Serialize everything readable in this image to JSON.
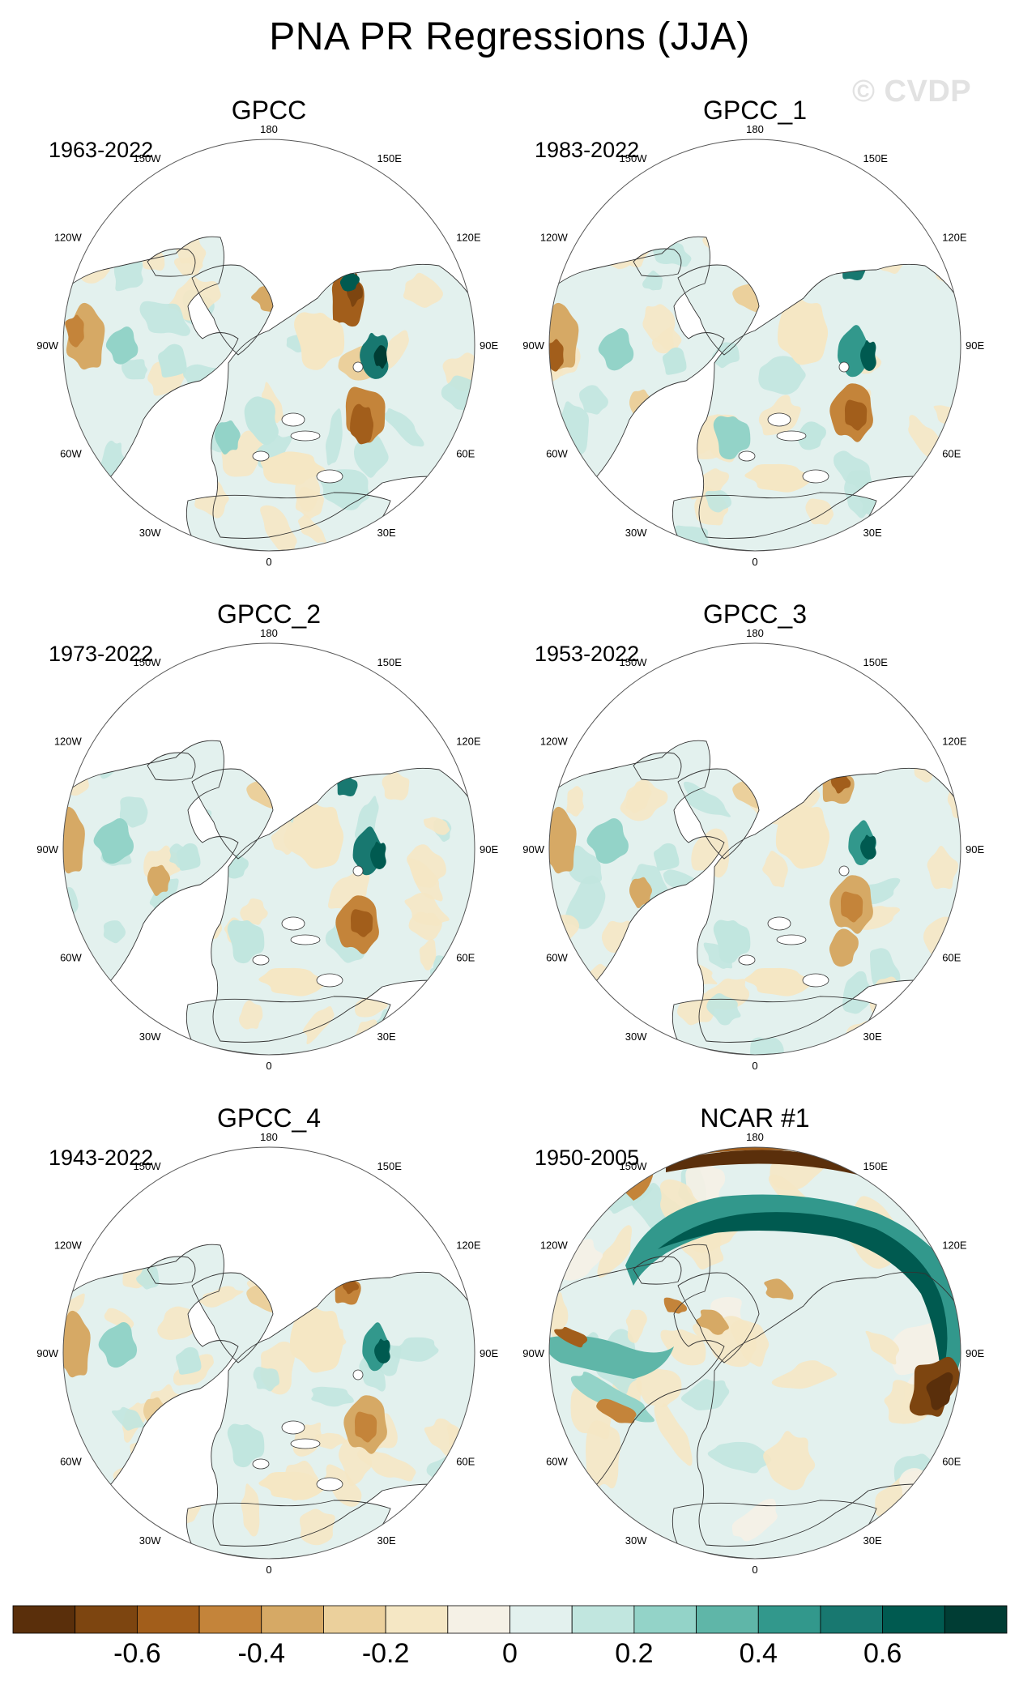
{
  "title": "PNA PR Regressions (JJA)",
  "watermark": "© CVDP",
  "panels": [
    {
      "name": "GPCC",
      "years": "1963-2022",
      "pattern": "obs1"
    },
    {
      "name": "GPCC_1",
      "years": "1983-2022",
      "pattern": "obs2"
    },
    {
      "name": "GPCC_2",
      "years": "1973-2022",
      "pattern": "obs3"
    },
    {
      "name": "GPCC_3",
      "years": "1953-2022",
      "pattern": "obs4"
    },
    {
      "name": "GPCC_4",
      "years": "1943-2022",
      "pattern": "obs5"
    },
    {
      "name": "NCAR #1",
      "years": "1950-2005",
      "pattern": "model"
    }
  ],
  "lon_labels": [
    "180",
    "150E",
    "120E",
    "90E",
    "60E",
    "30E",
    "0",
    "30W",
    "60W",
    "90W",
    "120W",
    "150W"
  ],
  "colorbar": {
    "colors": [
      "#5a2f0b",
      "#7d4510",
      "#a25e1b",
      "#c4843a",
      "#d6a965",
      "#ebd09c",
      "#f5e7c4",
      "#f5f1e6",
      "#e3f1ee",
      "#c1e6df",
      "#93d3c8",
      "#5fb6a8",
      "#32988c",
      "#187870",
      "#005a50",
      "#003d34"
    ],
    "tick_labels": [
      "-0.6",
      "-0.4",
      "-0.2",
      "0",
      "0.2",
      "0.4",
      "0.6"
    ],
    "tick_values": [
      -0.6,
      -0.4,
      -0.2,
      0,
      0.2,
      0.4,
      0.6
    ],
    "min": -0.8,
    "max": 0.8
  }
}
